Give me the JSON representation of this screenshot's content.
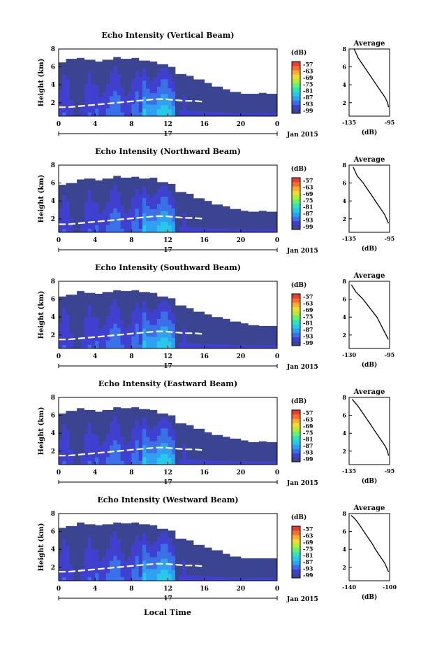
{
  "figure": {
    "shared_xlabel": "Local Time",
    "date_label": "Jan 2015",
    "day_label": "17"
  },
  "colorbar": {
    "unit": "(dB)",
    "ticks": [
      "-57",
      "-63",
      "-69",
      "-75",
      "-81",
      "-87",
      "-93",
      "-99"
    ],
    "colors": [
      "#3b4490",
      "#4040d0",
      "#3a70e8",
      "#30a0f0",
      "#28c8e8",
      "#30e0c0",
      "#60f080",
      "#a8f040",
      "#e8e030",
      "#f8b030",
      "#f87030",
      "#e84030"
    ]
  },
  "chart_data": [
    {
      "type": "heatmap",
      "title": "Echo Intensity (Vertical Beam)",
      "ylabel": "Height (km)",
      "x_ticks": [
        "0",
        "4",
        "8",
        "12",
        "16",
        "20",
        "0"
      ],
      "y_ticks": [
        "8",
        "6",
        "4",
        "2"
      ],
      "xlim": [
        0,
        24
      ],
      "ylim": [
        0.5,
        8
      ],
      "echo_top_km": [
        6.5,
        6.9,
        7.0,
        6.8,
        6.6,
        6.8,
        7.1,
        6.9,
        7.0,
        6.7,
        6.6,
        6.3,
        6.0,
        5.2,
        5.0,
        4.6,
        4.2,
        3.8,
        3.5,
        3.2,
        3.0,
        3.0,
        3.1,
        3.0
      ],
      "bright_band_km": [
        1.5,
        1.5,
        1.6,
        1.7,
        1.8,
        1.9,
        2.0,
        2.1,
        2.2,
        2.3,
        2.4,
        2.4,
        2.3,
        2.2,
        2.2,
        2.1
      ],
      "profile": {
        "title": "Average",
        "xlabel": "(dB)",
        "x_ticks": [
          "-135",
          "-95"
        ],
        "y_ticks": [
          "8",
          "6",
          "4",
          "2"
        ],
        "xlim": [
          -135,
          -95
        ],
        "ylim": [
          0.5,
          8
        ],
        "x": [
          -130,
          -128,
          -126,
          -123,
          -120,
          -117,
          -114,
          -111,
          -108,
          -105,
          -102,
          -99,
          -97,
          -96
        ],
        "y": [
          8.0,
          7.5,
          7.0,
          6.5,
          6.0,
          5.5,
          5.0,
          4.5,
          4.0,
          3.5,
          3.0,
          2.5,
          2.0,
          1.5
        ]
      }
    },
    {
      "type": "heatmap",
      "title": "Echo Intensity (Northward Beam)",
      "ylabel": "Height (km)",
      "x_ticks": [
        "0",
        "4",
        "8",
        "12",
        "16",
        "20",
        "0"
      ],
      "y_ticks": [
        "8",
        "6",
        "4",
        "2"
      ],
      "xlim": [
        0,
        24
      ],
      "ylim": [
        0.5,
        8
      ],
      "echo_top_km": [
        5.8,
        6.0,
        6.4,
        6.5,
        6.3,
        6.5,
        6.8,
        6.6,
        6.7,
        6.5,
        6.6,
        6.1,
        5.9,
        5.0,
        4.8,
        4.3,
        4.0,
        3.6,
        3.4,
        3.1,
        2.9,
        2.8,
        2.9,
        2.8
      ],
      "bright_band_km": [
        1.4,
        1.4,
        1.5,
        1.6,
        1.7,
        1.8,
        1.9,
        2.0,
        2.1,
        2.2,
        2.3,
        2.3,
        2.2,
        2.1,
        2.1,
        2.0
      ],
      "profile": {
        "title": "Average",
        "xlabel": "(dB)",
        "x_ticks": [
          "-135",
          "-95"
        ],
        "y_ticks": [
          "8",
          "6",
          "4",
          "2"
        ],
        "xlim": [
          -135,
          -95
        ],
        "ylim": [
          0.5,
          8
        ],
        "x": [
          -131,
          -129,
          -127,
          -124,
          -121,
          -118,
          -115,
          -112,
          -109,
          -106,
          -103,
          -100,
          -98,
          -96
        ],
        "y": [
          7.8,
          7.3,
          6.8,
          6.4,
          6.0,
          5.5,
          5.0,
          4.5,
          4.0,
          3.5,
          3.0,
          2.5,
          2.0,
          1.5
        ]
      }
    },
    {
      "type": "heatmap",
      "title": "Echo Intensity (Southward Beam)",
      "ylabel": "Height (km)",
      "x_ticks": [
        "0",
        "4",
        "8",
        "12",
        "16",
        "20",
        "0"
      ],
      "y_ticks": [
        "8",
        "6",
        "4",
        "2"
      ],
      "xlim": [
        0,
        24
      ],
      "ylim": [
        0.5,
        8
      ],
      "echo_top_km": [
        6.3,
        6.5,
        6.9,
        6.7,
        6.6,
        6.8,
        7.0,
        6.9,
        7.0,
        6.8,
        6.7,
        6.3,
        6.1,
        5.3,
        5.0,
        4.6,
        4.3,
        4.0,
        3.8,
        3.5,
        3.3,
        3.1,
        3.0,
        3.0
      ],
      "bright_band_km": [
        1.5,
        1.5,
        1.6,
        1.7,
        1.8,
        1.9,
        2.0,
        2.1,
        2.2,
        2.3,
        2.4,
        2.4,
        2.3,
        2.2,
        2.2,
        2.1
      ],
      "profile": {
        "title": "Average",
        "xlabel": "(dB)",
        "x_ticks": [
          "-130",
          "-95"
        ],
        "y_ticks": [
          "8",
          "6",
          "4",
          "2"
        ],
        "xlim": [
          -130,
          -95
        ],
        "ylim": [
          0.5,
          8
        ],
        "x": [
          -128,
          -126,
          -124,
          -121,
          -118,
          -115,
          -112,
          -109,
          -106,
          -104,
          -102,
          -100,
          -98,
          -96
        ],
        "y": [
          7.6,
          7.2,
          6.8,
          6.4,
          6.0,
          5.5,
          5.0,
          4.5,
          4.0,
          3.5,
          3.0,
          2.5,
          2.0,
          1.5
        ]
      }
    },
    {
      "type": "heatmap",
      "title": "Echo Intensity (Eastward Beam)",
      "ylabel": "Height (km)",
      "x_ticks": [
        "0",
        "4",
        "8",
        "12",
        "16",
        "20",
        "0"
      ],
      "y_ticks": [
        "8",
        "6",
        "4",
        "2"
      ],
      "xlim": [
        0,
        24
      ],
      "ylim": [
        0.5,
        8
      ],
      "echo_top_km": [
        6.2,
        6.5,
        6.8,
        6.6,
        6.4,
        6.6,
        6.9,
        6.8,
        6.9,
        6.7,
        6.6,
        6.2,
        6.0,
        5.1,
        4.9,
        4.5,
        4.1,
        3.8,
        3.6,
        3.4,
        3.2,
        3.0,
        3.1,
        3.0
      ],
      "bright_band_km": [
        1.5,
        1.5,
        1.6,
        1.7,
        1.8,
        1.9,
        2.0,
        2.1,
        2.2,
        2.3,
        2.4,
        2.4,
        2.3,
        2.2,
        2.2,
        2.1
      ],
      "profile": {
        "title": "Average",
        "xlabel": "(dB)",
        "x_ticks": [
          "-135",
          "-95"
        ],
        "y_ticks": [
          "8",
          "6",
          "4",
          "2"
        ],
        "xlim": [
          -135,
          -95
        ],
        "ylim": [
          0.5,
          8
        ],
        "x": [
          -132,
          -129,
          -126,
          -123,
          -120,
          -117,
          -114,
          -111,
          -108,
          -105,
          -102,
          -99,
          -97,
          -96
        ],
        "y": [
          7.8,
          7.4,
          7.0,
          6.5,
          6.0,
          5.5,
          5.0,
          4.5,
          4.0,
          3.5,
          3.0,
          2.5,
          2.0,
          1.5
        ]
      }
    },
    {
      "type": "heatmap",
      "title": "Echo Intensity (Westward Beam)",
      "ylabel": "Height (km)",
      "x_ticks": [
        "0",
        "4",
        "8",
        "12",
        "16",
        "20",
        "0"
      ],
      "y_ticks": [
        "8",
        "6",
        "4",
        "2"
      ],
      "xlim": [
        0,
        24
      ],
      "ylim": [
        0.5,
        8
      ],
      "echo_top_km": [
        6.4,
        6.6,
        7.0,
        6.8,
        6.7,
        6.8,
        7.0,
        6.9,
        7.0,
        6.8,
        6.7,
        6.3,
        6.1,
        5.2,
        5.0,
        4.5,
        4.2,
        3.9,
        3.5,
        3.2,
        3.0,
        3.0,
        3.0,
        3.0
      ],
      "bright_band_km": [
        1.5,
        1.5,
        1.6,
        1.7,
        1.8,
        1.9,
        2.0,
        2.1,
        2.2,
        2.3,
        2.4,
        2.4,
        2.3,
        2.2,
        2.2,
        2.1
      ],
      "profile": {
        "title": "Average",
        "xlabel": "(dB)",
        "x_ticks": [
          "-140",
          "-100"
        ],
        "y_ticks": [
          "8",
          "6",
          "4",
          "2"
        ],
        "xlim": [
          -140,
          -100
        ],
        "ylim": [
          0.5,
          8
        ],
        "x": [
          -138,
          -135,
          -132,
          -129,
          -126,
          -123,
          -120,
          -117,
          -114,
          -111,
          -108,
          -105,
          -103,
          -101
        ],
        "y": [
          7.8,
          7.5,
          7.1,
          6.6,
          6.1,
          5.6,
          5.1,
          4.6,
          4.0,
          3.5,
          3.0,
          2.5,
          2.0,
          1.5
        ]
      }
    }
  ]
}
